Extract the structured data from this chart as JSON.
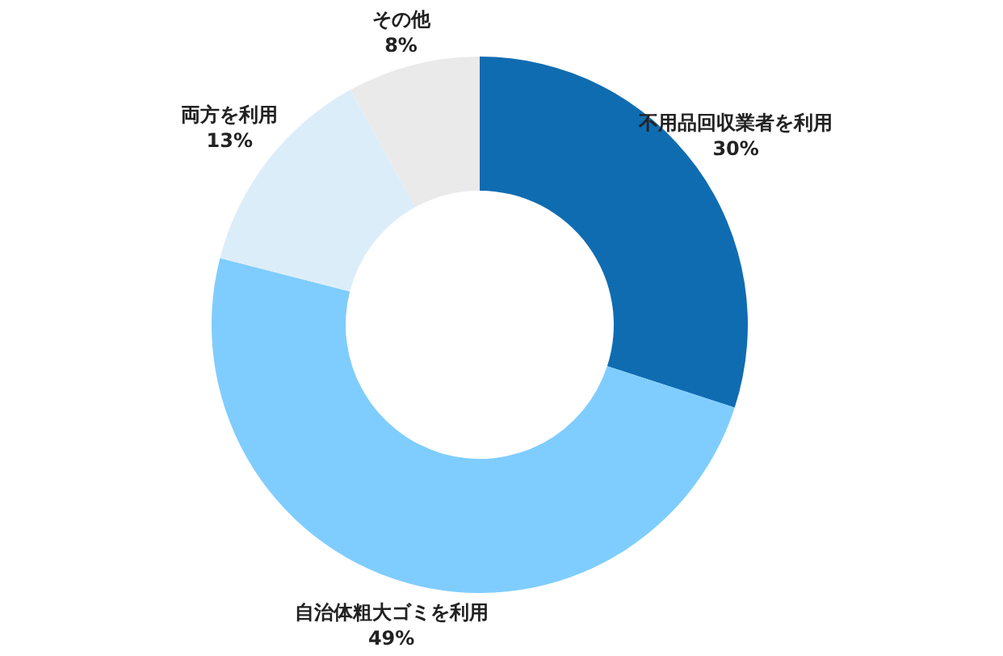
{
  "chart_data": {
    "type": "donut",
    "categories": [
      "不用品回収業者を利用",
      "自治体粗大ゴミを利用",
      "両方を利用",
      "その他"
    ],
    "values": [
      30,
      49,
      13,
      8
    ],
    "colors": [
      "#106cb1",
      "#7fcdfe",
      "#dcedfa",
      "#eaeaea"
    ],
    "value_labels": [
      "30%",
      "49%",
      "13%",
      "8%"
    ]
  }
}
